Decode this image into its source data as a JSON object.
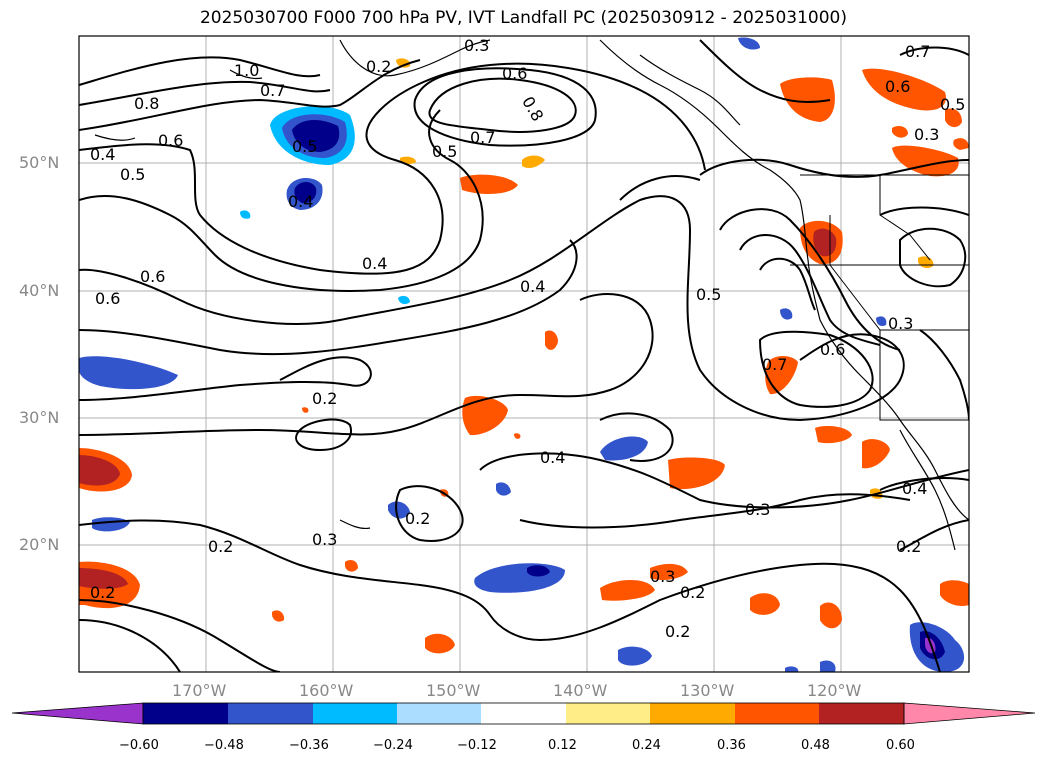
{
  "title": "2025030700 F000 700 hPa PV, IVT Landfall PC (2025030912 - 2025031000)",
  "lat_labels": [
    "50°N",
    "40°N",
    "30°N",
    "20°N"
  ],
  "lon_labels": [
    "170°W",
    "160°W",
    "150°W",
    "140°W",
    "130°W",
    "120°W"
  ],
  "contour_labels": [
    "0.3",
    "0.6",
    "0.8",
    "0.7",
    "0.5",
    "1.0",
    "0.7",
    "0.2",
    "0.8",
    "0.6",
    "0.5",
    "0.4",
    "0.6",
    "0.4",
    "0.4",
    "0.5",
    "0.6",
    "0.2",
    "0.4",
    "0.3",
    "0.2",
    "0.2",
    "0.3",
    "0.2",
    "0.2",
    "0.4",
    "0.5",
    "0.7",
    "0.6",
    "0.3",
    "0.3",
    "0.4",
    "0.7",
    "0.6",
    "0.5",
    "0.3",
    "0.2",
    "0.2"
  ],
  "colorbar": {
    "ticks": [
      "−0.60",
      "−0.48",
      "−0.36",
      "−0.24",
      "−0.12",
      "0.12",
      "0.24",
      "0.36",
      "0.48",
      "0.60"
    ],
    "colors": [
      "#9933cc",
      "#00008b",
      "#3355cc",
      "#00bbff",
      "#aaddff",
      "#ffffff",
      "#ffee88",
      "#ffaa00",
      "#ff5500",
      "#b22222",
      "#ff88aa"
    ]
  }
}
